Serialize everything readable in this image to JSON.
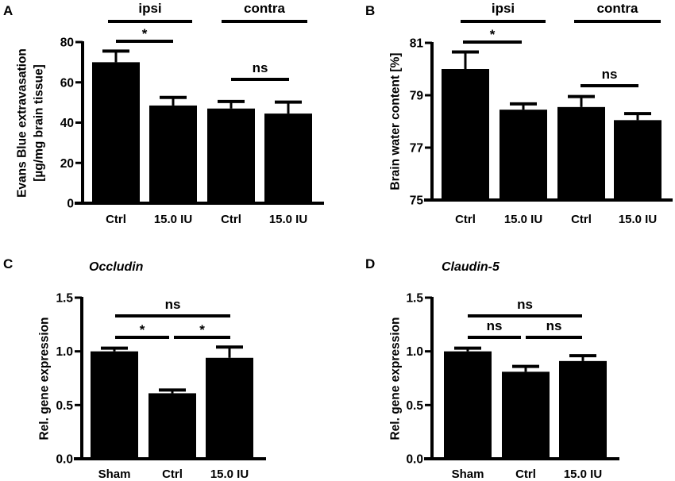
{
  "chart_data": [
    {
      "id": "A",
      "type": "bar",
      "panel_label": "A",
      "title": "",
      "ylabel": [
        "Evans Blue extravasation",
        "[µg/mg brain tissue]"
      ],
      "xlabel": "",
      "ylim": [
        0,
        80
      ],
      "yticks": [
        0,
        20,
        40,
        60,
        80
      ],
      "ytick_labels": [
        "0",
        "20",
        "40",
        "60",
        "80"
      ],
      "categories": [
        "Ctrl",
        "15.0 IU",
        "Ctrl",
        "15.0 IU"
      ],
      "values": [
        70,
        48.5,
        47,
        44.5
      ],
      "error_upper": [
        75.5,
        52.5,
        50.5,
        50.2
      ],
      "bar_color": "#000000",
      "groups": [
        {
          "label": "ipsi",
          "bars": [
            0,
            1
          ]
        },
        {
          "label": "contra",
          "bars": [
            2,
            3
          ]
        }
      ],
      "significance": [
        {
          "from": 0,
          "to": 1,
          "label": "*",
          "level": 1
        },
        {
          "from": 2,
          "to": 3,
          "label": "ns",
          "level": 0
        }
      ],
      "grid": false,
      "legend": "none"
    },
    {
      "id": "B",
      "type": "bar",
      "panel_label": "B",
      "title": "",
      "ylabel": [
        "Brain water content [%]"
      ],
      "xlabel": "",
      "ylim": [
        75,
        81
      ],
      "yticks": [
        75,
        77,
        79,
        81
      ],
      "ytick_labels": [
        "75",
        "77",
        "79",
        "81"
      ],
      "categories": [
        "Ctrl",
        "15.0 IU",
        "Ctrl",
        "15.0 IU"
      ],
      "values": [
        80.0,
        78.45,
        78.55,
        78.05
      ],
      "error_upper": [
        80.65,
        78.67,
        78.95,
        78.3
      ],
      "bar_color": "#000000",
      "groups": [
        {
          "label": "ipsi",
          "bars": [
            0,
            1
          ]
        },
        {
          "label": "contra",
          "bars": [
            2,
            3
          ]
        }
      ],
      "significance": [
        {
          "from": 0,
          "to": 1,
          "label": "*",
          "level": 1
        },
        {
          "from": 2,
          "to": 3,
          "label": "ns",
          "level": 0
        }
      ],
      "grid": false,
      "legend": "none"
    },
    {
      "id": "C",
      "type": "bar",
      "panel_label": "C",
      "title": "Occludin",
      "ylabel": [
        "Rel. gene expression"
      ],
      "xlabel": "",
      "ylim": [
        0,
        1.5
      ],
      "yticks": [
        0,
        0.5,
        1.0,
        1.5
      ],
      "ytick_labels": [
        "0.0",
        "0.5",
        "1.0",
        "1.5"
      ],
      "categories": [
        "Sham",
        "Ctrl",
        "15.0 IU"
      ],
      "values": [
        1.0,
        0.61,
        0.94
      ],
      "error_upper": [
        1.03,
        0.64,
        1.04
      ],
      "bar_color": "#000000",
      "groups": [],
      "significance": [
        {
          "from": 0,
          "to": 2,
          "label": "ns",
          "level": 2
        },
        {
          "from": 0,
          "to": 1,
          "label": "*",
          "level": 1
        },
        {
          "from": 1,
          "to": 2,
          "label": "*",
          "level": 1
        }
      ],
      "grid": false,
      "legend": "none"
    },
    {
      "id": "D",
      "type": "bar",
      "panel_label": "D",
      "title": "Claudin-5",
      "ylabel": [
        "Rel. gene expression"
      ],
      "xlabel": "",
      "ylim": [
        0,
        1.5
      ],
      "yticks": [
        0,
        0.5,
        1.0,
        1.5
      ],
      "ytick_labels": [
        "0.0",
        "0.5",
        "1.0",
        "1.5"
      ],
      "categories": [
        "Sham",
        "Ctrl",
        "15.0 IU"
      ],
      "values": [
        1.0,
        0.81,
        0.91
      ],
      "error_upper": [
        1.03,
        0.86,
        0.96
      ],
      "bar_color": "#000000",
      "groups": [],
      "significance": [
        {
          "from": 0,
          "to": 2,
          "label": "ns",
          "level": 2
        },
        {
          "from": 0,
          "to": 1,
          "label": "ns",
          "level": 1
        },
        {
          "from": 1,
          "to": 2,
          "label": "ns",
          "level": 1
        }
      ],
      "grid": false,
      "legend": "none"
    }
  ]
}
